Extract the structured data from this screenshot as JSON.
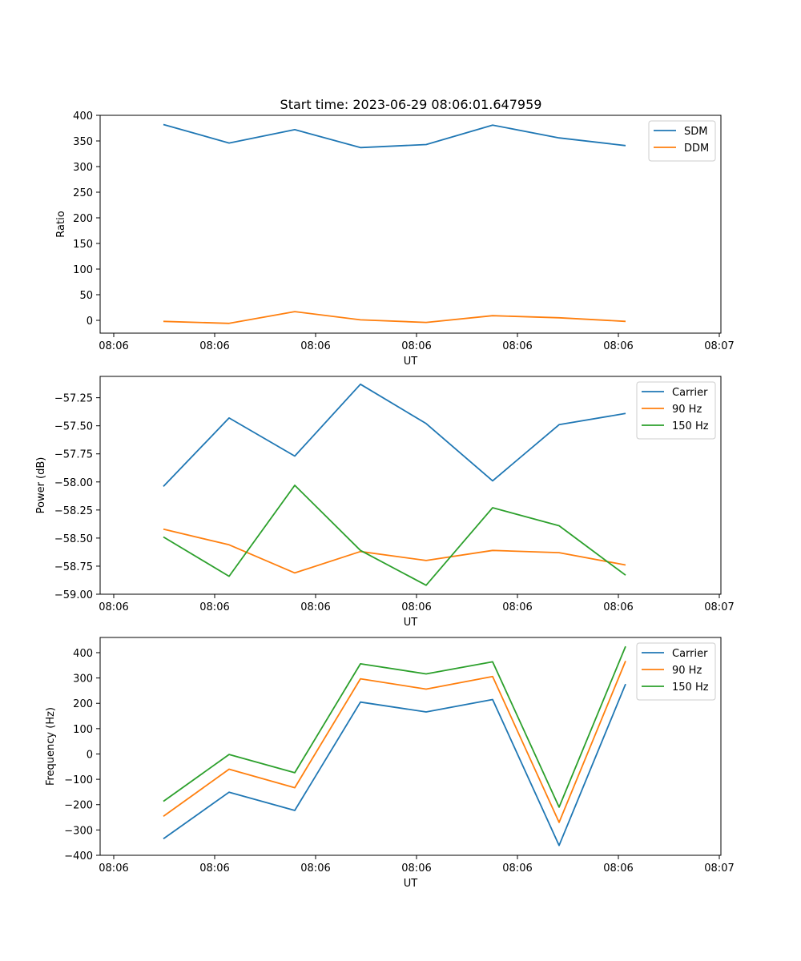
{
  "figure": {
    "title": "Start time: 2023-06-29 08:06:01.647959"
  },
  "colors": {
    "blue": "#1f77b4",
    "orange": "#ff7f0e",
    "green": "#2ca02c"
  },
  "chart_data": [
    {
      "type": "line",
      "title": "Start time: 2023-06-29 08:06:01.647959",
      "xlabel": "UT",
      "ylabel": "Ratio",
      "x_tick_labels": [
        "08:06",
        "08:06",
        "08:06",
        "08:06",
        "08:06",
        "08:06",
        "08:06",
        "08:07"
      ],
      "y_ticks": [
        0,
        50,
        100,
        150,
        200,
        250,
        300,
        350,
        400
      ],
      "ylim": [
        -25,
        400
      ],
      "grid": false,
      "legend_position": "top-right",
      "series": [
        {
          "name": "SDM",
          "color": "#1f77b4",
          "values": [
            382,
            346,
            372,
            337,
            343,
            381,
            356,
            341
          ]
        },
        {
          "name": "DDM",
          "color": "#ff7f0e",
          "values": [
            -2,
            -6,
            17,
            1,
            -4,
            9,
            5,
            -2
          ]
        }
      ]
    },
    {
      "type": "line",
      "title": "",
      "xlabel": "UT",
      "ylabel": "Power (dB)",
      "x_tick_labels": [
        "08:06",
        "08:06",
        "08:06",
        "08:06",
        "08:06",
        "08:06",
        "08:06",
        "08:07"
      ],
      "y_ticks": [
        -59.0,
        -58.75,
        -58.5,
        -58.25,
        -58.0,
        -57.75,
        -57.5,
        -57.25
      ],
      "y_tick_labels": [
        "−59.00",
        "−58.75",
        "−58.50",
        "−58.25",
        "−58.00",
        "−57.75",
        "−57.50",
        "−57.25"
      ],
      "ylim": [
        -59.0,
        -57.06
      ],
      "grid": false,
      "legend_position": "top-right",
      "series": [
        {
          "name": "Carrier",
          "color": "#1f77b4",
          "values": [
            -58.04,
            -57.43,
            -57.77,
            -57.13,
            -57.48,
            -57.99,
            -57.49,
            -57.39
          ]
        },
        {
          "name": "90 Hz",
          "color": "#ff7f0e",
          "values": [
            -58.42,
            -58.56,
            -58.81,
            -58.62,
            -58.7,
            -58.61,
            -58.63,
            -58.74
          ]
        },
        {
          "name": "150 Hz",
          "color": "#2ca02c",
          "values": [
            -58.49,
            -58.84,
            -58.03,
            -58.61,
            -58.92,
            -58.23,
            -58.39,
            -58.83
          ]
        }
      ]
    },
    {
      "type": "line",
      "title": "",
      "xlabel": "UT",
      "ylabel": "Frequency (Hz)",
      "x_tick_labels": [
        "08:06",
        "08:06",
        "08:06",
        "08:06",
        "08:06",
        "08:06",
        "08:06",
        "08:07"
      ],
      "y_ticks": [
        -400,
        -300,
        -200,
        -100,
        0,
        100,
        200,
        300,
        400
      ],
      "y_tick_labels": [
        "−400",
        "−300",
        "−200",
        "−100",
        "0",
        "100",
        "200",
        "300",
        "400"
      ],
      "ylim": [
        -400,
        460
      ],
      "grid": false,
      "legend_position": "top-right",
      "series": [
        {
          "name": "Carrier",
          "color": "#1f77b4",
          "values": [
            -335,
            -151,
            -223,
            205,
            166,
            215,
            -361,
            276
          ]
        },
        {
          "name": "90 Hz",
          "color": "#ff7f0e",
          "values": [
            -246,
            -60,
            -133,
            297,
            256,
            306,
            -270,
            367
          ]
        },
        {
          "name": "150 Hz",
          "color": "#2ca02c",
          "values": [
            -187,
            -2,
            -74,
            356,
            316,
            364,
            -210,
            425
          ]
        }
      ]
    }
  ]
}
